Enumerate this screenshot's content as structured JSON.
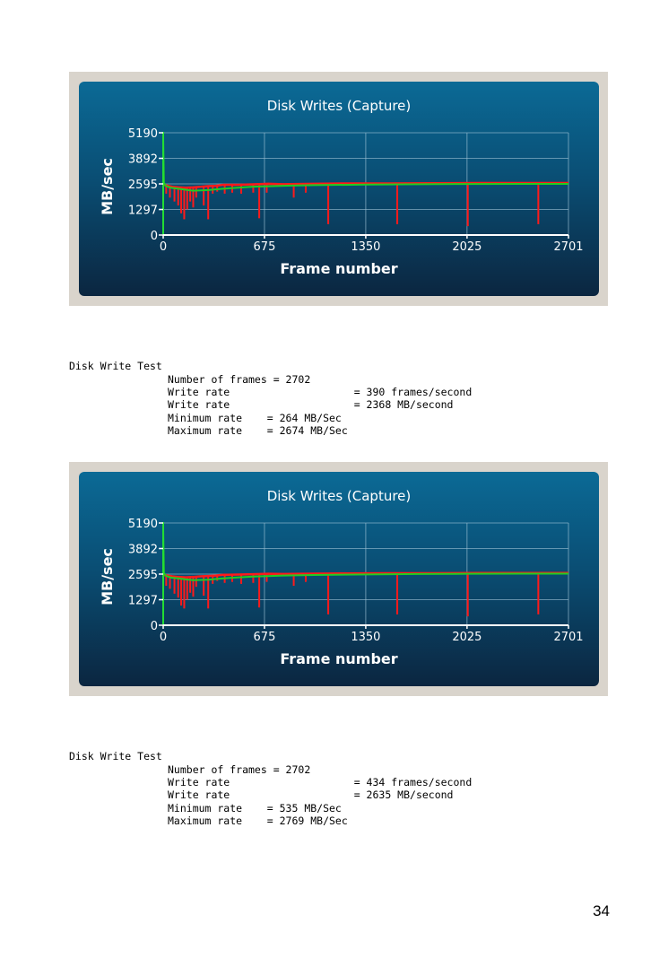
{
  "page_number": "34",
  "colors": {
    "panel_top": "#0b6a96",
    "panel_bottom": "#0b2640",
    "axis": "#22dd33",
    "grid": "#9fc3d6",
    "write_rate_series": "#ff1a1a",
    "average_series": "#22cc22",
    "text": "#ffffff"
  },
  "chart_data": [
    {
      "type": "line",
      "title": "Disk Writes (Capture)",
      "xlabel": "Frame number",
      "ylabel": "MB/sec",
      "x_ticks": [
        "0",
        "675",
        "1350",
        "2025",
        "2701"
      ],
      "y_ticks": [
        "0",
        "1297",
        "2595",
        "3892",
        "5190"
      ],
      "xlim": [
        0,
        2701
      ],
      "ylim": [
        0,
        5190
      ],
      "grid": true,
      "series": [
        {
          "color": "#ff1a1a",
          "baseline_x": [
            0,
            10,
            30,
            60,
            100,
            150,
            200,
            250,
            300,
            350,
            400,
            500,
            600,
            700,
            800,
            1000,
            1200,
            1500,
            1800,
            2100,
            2400,
            2701
          ],
          "baseline_y": [
            2500,
            2550,
            2500,
            2450,
            2420,
            2400,
            2420,
            2450,
            2480,
            2500,
            2550,
            2550,
            2570,
            2600,
            2580,
            2600,
            2620,
            2620,
            2630,
            2640,
            2640,
            2640
          ],
          "dips": [
            [
              20,
              2100
            ],
            [
              45,
              1900
            ],
            [
              75,
              1700
            ],
            [
              100,
              1500
            ],
            [
              120,
              1100
            ],
            [
              140,
              800
            ],
            [
              160,
              1300
            ],
            [
              180,
              1700
            ],
            [
              200,
              1400
            ],
            [
              220,
              1900
            ],
            [
              270,
              1500
            ],
            [
              300,
              800
            ],
            [
              330,
              2100
            ],
            [
              360,
              2200
            ],
            [
              410,
              2100
            ],
            [
              460,
              2150
            ],
            [
              520,
              2100
            ],
            [
              600,
              2150
            ],
            [
              640,
              850
            ],
            [
              690,
              2150
            ],
            [
              870,
              1900
            ],
            [
              950,
              2150
            ],
            [
              1100,
              550
            ],
            [
              1560,
              550
            ],
            [
              2030,
              450
            ],
            [
              2500,
              550
            ]
          ]
        },
        {
          "color": "#22cc22",
          "x": [
            0,
            5,
            20,
            50,
            100,
            150,
            200,
            300,
            400,
            600,
            800,
            1000,
            1350,
            1700,
            2025,
            2400,
            2701
          ],
          "y": [
            4900,
            2650,
            2480,
            2400,
            2350,
            2300,
            2250,
            2280,
            2350,
            2450,
            2500,
            2530,
            2560,
            2580,
            2590,
            2595,
            2595
          ]
        }
      ]
    },
    {
      "type": "line",
      "title": "Disk Writes (Capture)",
      "xlabel": "Frame number",
      "ylabel": "MB/sec",
      "x_ticks": [
        "0",
        "675",
        "1350",
        "2025",
        "2701"
      ],
      "y_ticks": [
        "0",
        "1297",
        "2595",
        "3892",
        "5190"
      ],
      "xlim": [
        0,
        2701
      ],
      "ylim": [
        0,
        5190
      ],
      "grid": true,
      "series": [
        {
          "color": "#ff1a1a",
          "baseline_x": [
            0,
            10,
            30,
            60,
            100,
            150,
            200,
            250,
            300,
            350,
            400,
            500,
            600,
            700,
            800,
            1000,
            1200,
            1500,
            1800,
            2100,
            2400,
            2701
          ],
          "baseline_y": [
            2500,
            2550,
            2520,
            2480,
            2450,
            2430,
            2450,
            2480,
            2500,
            2520,
            2560,
            2570,
            2590,
            2610,
            2600,
            2620,
            2630,
            2640,
            2640,
            2650,
            2650,
            2650
          ],
          "dips": [
            [
              20,
              2000
            ],
            [
              45,
              1850
            ],
            [
              75,
              1600
            ],
            [
              100,
              1400
            ],
            [
              120,
              1000
            ],
            [
              140,
              850
            ],
            [
              160,
              1300
            ],
            [
              180,
              1650
            ],
            [
              200,
              1450
            ],
            [
              220,
              1950
            ],
            [
              270,
              1500
            ],
            [
              300,
              850
            ],
            [
              330,
              2100
            ],
            [
              360,
              2250
            ],
            [
              410,
              2150
            ],
            [
              460,
              2200
            ],
            [
              520,
              2100
            ],
            [
              600,
              2150
            ],
            [
              640,
              900
            ],
            [
              690,
              2200
            ],
            [
              870,
              2000
            ],
            [
              950,
              2200
            ],
            [
              1100,
              550
            ],
            [
              1560,
              550
            ],
            [
              2030,
              450
            ],
            [
              2500,
              550
            ]
          ]
        },
        {
          "color": "#22cc22",
          "x": [
            0,
            5,
            20,
            50,
            100,
            150,
            200,
            300,
            400,
            600,
            800,
            1000,
            1350,
            1700,
            2025,
            2400,
            2701
          ],
          "y": [
            4900,
            2650,
            2500,
            2420,
            2380,
            2330,
            2290,
            2310,
            2380,
            2470,
            2520,
            2550,
            2580,
            2600,
            2610,
            2615,
            2615
          ]
        }
      ]
    }
  ],
  "reports": [
    {
      "heading": "Disk Write Test",
      "rows": [
        "Number of frames = 2702",
        "Write rate                    = 390 frames/second",
        "Write rate                    = 2368 MB/second",
        "Minimum rate    = 264 MB/Sec",
        "Maximum rate    = 2674 MB/Sec"
      ]
    },
    {
      "heading": "Disk Write Test",
      "rows": [
        "Number of frames = 2702",
        "Write rate                    = 434 frames/second",
        "Write rate                    = 2635 MB/second",
        "Minimum rate    = 535 MB/Sec",
        "Maximum rate    = 2769 MB/Sec"
      ]
    }
  ]
}
